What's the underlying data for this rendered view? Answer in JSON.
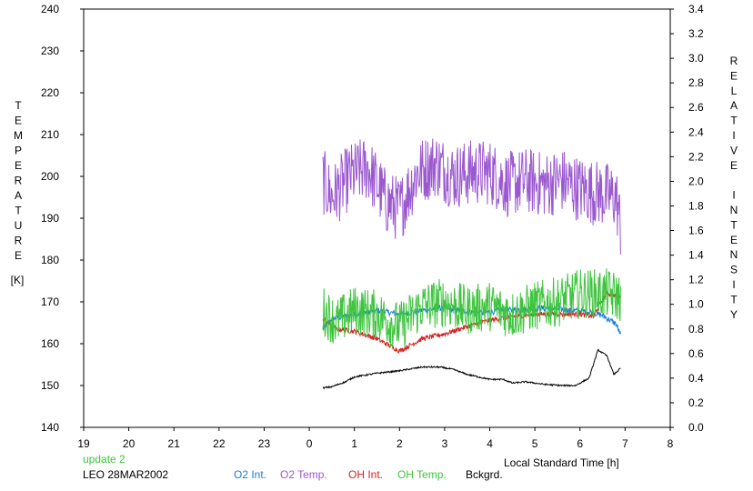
{
  "chart_data": {
    "type": "line",
    "xlabel": "Local Standard Time [h]",
    "ylabel_left": "TEMPERATURE",
    "ylabel_left_unit": "[K]",
    "ylabel_right": "RELATIVE INTENSITY",
    "x_range": [
      19,
      32
    ],
    "x_ticks": [
      "19",
      "20",
      "21",
      "22",
      "23",
      "0",
      "1",
      "2",
      "3",
      "4",
      "5",
      "6",
      "7",
      "8"
    ],
    "ylim_left": [
      140,
      240
    ],
    "y_ticks_left": [
      "140",
      "150",
      "160",
      "170",
      "180",
      "190",
      "200",
      "210",
      "220",
      "230",
      "240"
    ],
    "ylim_right": [
      0.0,
      3.4
    ],
    "y_ticks_right": [
      "0.0",
      "0.2",
      "0.4",
      "0.6",
      "0.8",
      "1.0",
      "1.2",
      "1.4",
      "1.6",
      "1.8",
      "2.0",
      "2.2",
      "2.4",
      "2.6",
      "2.8",
      "3.0",
      "3.2",
      "3.4"
    ],
    "grid": false,
    "annotations": {
      "update": "update 2",
      "station": "LEO 28MAR2002"
    },
    "legend_placement": "bottom",
    "series": [
      {
        "name": "O2 Int.",
        "axis": "right",
        "color": "#1c7ed6",
        "x": [
          0.3,
          0.5,
          1.0,
          1.5,
          2.0,
          2.5,
          2.9,
          3.3,
          3.8,
          4.3,
          4.8,
          5.3,
          5.8,
          6.2,
          6.5,
          6.8,
          6.9
        ],
        "y": [
          0.8,
          0.88,
          0.92,
          0.95,
          0.92,
          0.95,
          0.97,
          0.95,
          0.93,
          0.95,
          0.96,
          0.97,
          0.95,
          0.94,
          0.91,
          0.84,
          0.75
        ]
      },
      {
        "name": "O2 Temp.",
        "axis": "left",
        "color": "#9b59d0",
        "x": [
          0.3,
          0.5,
          0.9,
          1.3,
          1.7,
          2.0,
          2.4,
          2.8,
          3.2,
          3.6,
          4.0,
          4.4,
          4.8,
          5.2,
          5.6,
          6.0,
          6.4,
          6.8,
          6.9
        ],
        "y": [
          199,
          195,
          200,
          202,
          194,
          192,
          201,
          203,
          200,
          201,
          201,
          198,
          199,
          198,
          199,
          197,
          196,
          195,
          188
        ]
      },
      {
        "name": "OH Int.",
        "axis": "right",
        "color": "#d62020",
        "x": [
          0.3,
          0.6,
          1.0,
          1.5,
          1.8,
          2.0,
          2.5,
          3.0,
          3.5,
          4.0,
          4.5,
          5.0,
          5.5,
          6.0,
          6.3,
          6.5,
          6.6,
          6.9
        ],
        "y": [
          0.88,
          0.8,
          0.78,
          0.72,
          0.66,
          0.62,
          0.72,
          0.76,
          0.82,
          0.87,
          0.9,
          0.92,
          0.92,
          0.92,
          0.9,
          1.04,
          1.09,
          1.06
        ]
      },
      {
        "name": "OH Temp.",
        "axis": "left",
        "color": "#3ec43e",
        "x": [
          0.3,
          0.6,
          1.0,
          1.5,
          2.0,
          2.5,
          3.0,
          3.5,
          4.0,
          4.5,
          5.0,
          5.5,
          6.0,
          6.3,
          6.6,
          6.9
        ],
        "y": [
          168,
          165,
          168,
          167,
          164,
          169,
          170,
          168,
          169,
          167,
          169,
          170,
          172,
          172,
          172,
          171
        ]
      },
      {
        "name": "Bckgrd.",
        "axis": "right",
        "color": "#000000",
        "x": [
          0.3,
          0.5,
          0.8,
          1.0,
          1.5,
          2.0,
          2.5,
          2.9,
          3.2,
          3.5,
          4.0,
          4.3,
          4.5,
          4.8,
          5.2,
          5.6,
          5.9,
          6.2,
          6.4,
          6.6,
          6.75,
          6.9
        ],
        "y": [
          0.32,
          0.33,
          0.37,
          0.41,
          0.44,
          0.46,
          0.49,
          0.49,
          0.47,
          0.43,
          0.39,
          0.39,
          0.36,
          0.37,
          0.35,
          0.34,
          0.34,
          0.4,
          0.63,
          0.58,
          0.43,
          0.48
        ]
      }
    ]
  }
}
